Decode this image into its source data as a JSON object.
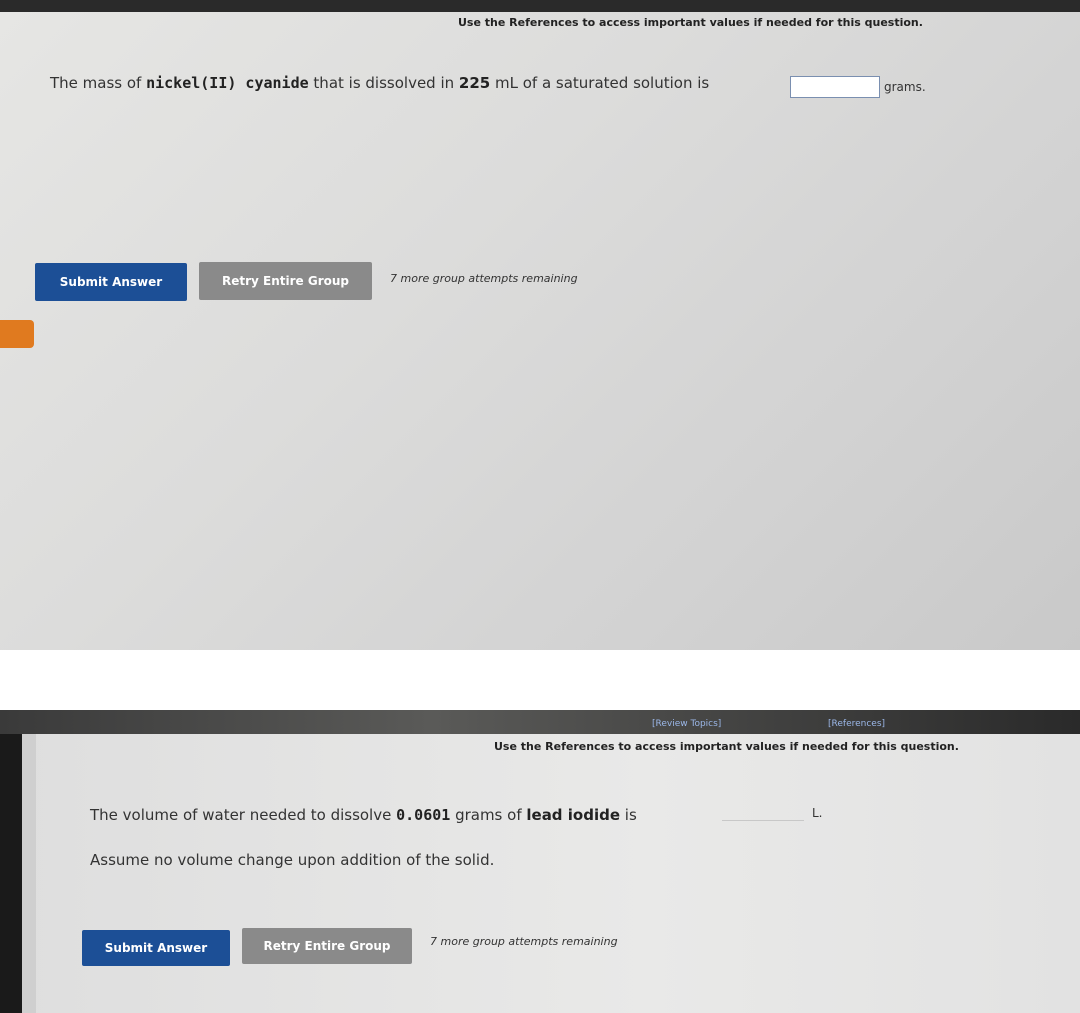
{
  "panels": [
    {
      "references_note": "Use the References to access important values if needed for this question.",
      "question": [
        "The mass of ",
        "nickel(II) cyanide",
        " that is dissolved in ",
        "225",
        " mL of a saturated solution is"
      ],
      "unit": "grams.",
      "buttons": [
        "Submit Answer",
        "Retry Entire Group"
      ],
      "attempts": "7 more group attempts remaining"
    },
    {
      "links": [
        "[Review Topics]",
        "[References]"
      ],
      "references_note": "Use the References to access important values if needed for this question.",
      "question": [
        "The volume of water needed to dissolve ",
        "0.0601",
        " grams of ",
        "lead iodide",
        " is"
      ],
      "unit": "L.",
      "note": "Assume no volume change upon addition of the solid.",
      "buttons": [
        "Submit Answer",
        "Retry Entire Group"
      ],
      "attempts": "7 more group attempts remaining"
    }
  ]
}
